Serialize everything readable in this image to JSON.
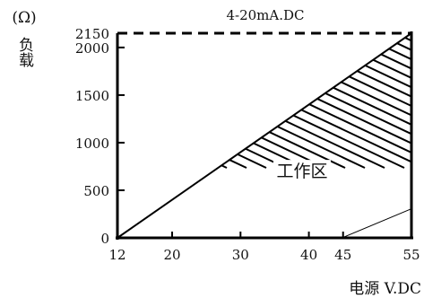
{
  "chart_data": {
    "type": "area",
    "title": "4-20mA.DC",
    "y_unit": "(Ω)",
    "ylabel": "负载",
    "xlabel": "电源 V.DC",
    "xlim": [
      12,
      55
    ],
    "ylim": [
      0,
      2150
    ],
    "x_ticks": [
      12,
      20,
      30,
      40,
      45,
      55
    ],
    "y_ticks": [
      0,
      500,
      1000,
      1500,
      2000,
      2150
    ],
    "boundary_line": {
      "x": [
        12,
        55
      ],
      "y": [
        0,
        2150
      ]
    },
    "dashed_max_load": 2150,
    "region_label": "工作区",
    "region_fill": "hatched",
    "region_vertices": [
      [
        12,
        0
      ],
      [
        55,
        2150
      ],
      [
        55,
        300
      ],
      [
        45,
        0
      ]
    ]
  }
}
